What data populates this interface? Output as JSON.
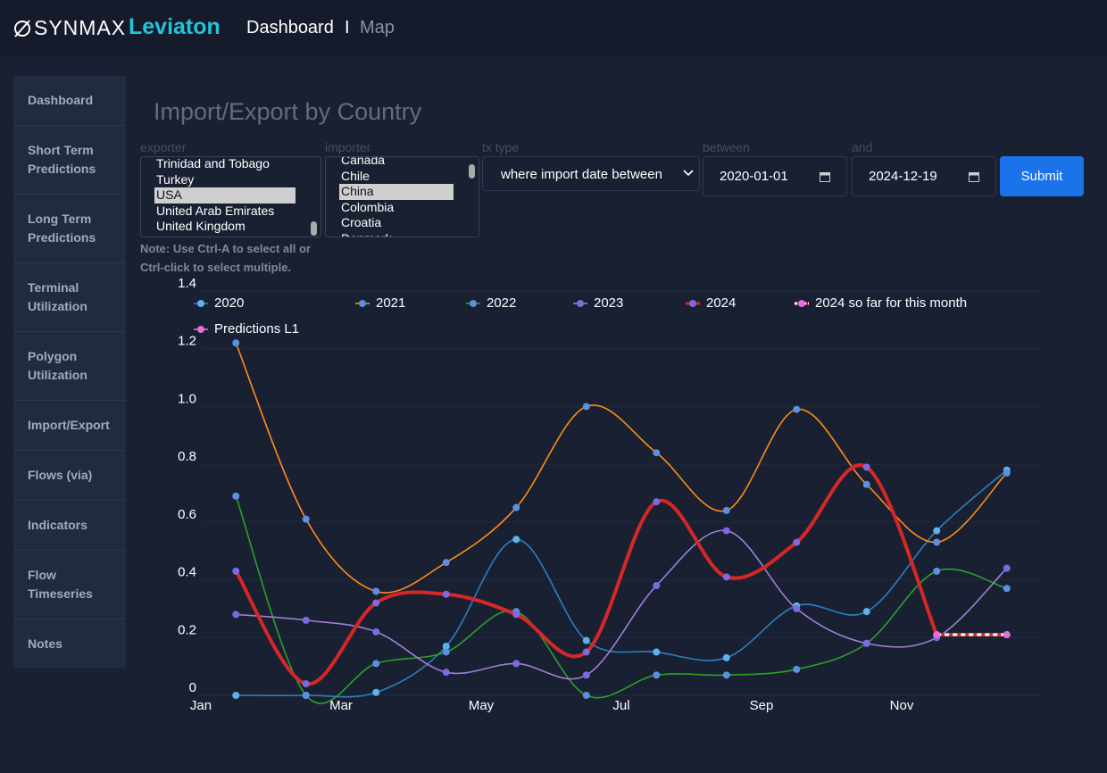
{
  "header": {
    "logo": "SYNMAX",
    "brand": "Leviaton",
    "nav": [
      "Dashboard",
      "Map"
    ],
    "separator": "I"
  },
  "sidebar": [
    "Dashboard",
    "Short Term Predictions",
    "Long Term Predictions",
    "Terminal Utilization",
    "Polygon Utilization",
    "Import/Export",
    "Flows (via)",
    "Indicators",
    "Flow Timeseries",
    "Notes"
  ],
  "form": {
    "title": "Import/Export by Country",
    "exporter": {
      "label": "exporter",
      "options": [
        "Trinidad and Tobago",
        "Turkey",
        "USA",
        "United Arab Emirates",
        "United Kingdom"
      ],
      "selected": 2
    },
    "importer": {
      "label": "importer",
      "options": [
        "Canada",
        "Chile",
        "China",
        "Colombia",
        "Croatia",
        "Denmark"
      ],
      "selected": 2
    },
    "tx_type": {
      "label": "tx type",
      "value": "where import date between"
    },
    "between": {
      "label": "between",
      "value": "2020-01-01"
    },
    "and": {
      "label": "and",
      "value": "2024-12-19"
    },
    "submit": "Submit",
    "note": "Note: Use Ctrl-A to select all or Ctrl-click to select multiple."
  },
  "chart_data": {
    "type": "line",
    "categories": [
      "Jan",
      null,
      "Mar",
      null,
      "May",
      null,
      "Jul",
      null,
      "Sep",
      null,
      "Nov",
      null
    ],
    "ylim": [
      0,
      1.4
    ],
    "yticks": [
      0,
      0.2,
      0.4,
      0.6,
      0.8,
      {
        "value": 1,
        "label": "1.0"
      },
      1.2,
      1.4
    ],
    "grid": true,
    "series": [
      {
        "name": "2020",
        "color": "#2b7fc0",
        "marker_color": "#5ab4ea",
        "line_width": 1.6,
        "values": [
          0,
          0,
          0.01,
          0.17,
          0.54,
          0.19,
          0.15,
          0.13,
          0.31,
          0.29,
          0.57,
          0.78
        ]
      },
      {
        "name": "2021",
        "color": "#ff8c1a",
        "marker_color": "#5b8fe3",
        "line_width": 1.6,
        "values": [
          1.22,
          0.61,
          0.36,
          0.46,
          0.65,
          1.0,
          0.84,
          0.64,
          0.99,
          0.73,
          0.53,
          0.77
        ]
      },
      {
        "name": "2022",
        "color": "#2ca02c",
        "marker_color": "#5b8fe3",
        "line_width": 1.6,
        "values": [
          0.69,
          0,
          0.11,
          0.15,
          0.29,
          0,
          0.07,
          0.07,
          0.09,
          0.18,
          0.43,
          0.37
        ]
      },
      {
        "name": "2023",
        "color": "#a07fd6",
        "marker_color": "#7b6ae0",
        "line_width": 1.6,
        "values": [
          0.28,
          0.26,
          0.22,
          0.08,
          0.11,
          0.07,
          0.38,
          0.57,
          0.3,
          0.18,
          0.2,
          0.44
        ]
      },
      {
        "name": "2024",
        "color": "#d62728",
        "marker_color": "#7b6ae0",
        "line_width": 4,
        "values": [
          0.43,
          0.04,
          0.32,
          0.35,
          0.28,
          0.15,
          0.67,
          0.41,
          0.53,
          0.79,
          0.21,
          null
        ]
      },
      {
        "name": "2024 so far for this month",
        "color": "#ffffff",
        "underlay_color": "#d62728",
        "dash": true,
        "marker_color": "#e56fd9",
        "line_width": 3,
        "values": [
          null,
          null,
          null,
          null,
          null,
          null,
          null,
          null,
          null,
          null,
          0.21,
          0.21
        ]
      },
      {
        "name": "Predictions L1",
        "color": "#e56fd9",
        "marker_color": "#e56fd9",
        "line_width": 1.6,
        "values": [
          null,
          null,
          null,
          null,
          null,
          null,
          null,
          null,
          null,
          null,
          null,
          0.21
        ]
      }
    ]
  }
}
